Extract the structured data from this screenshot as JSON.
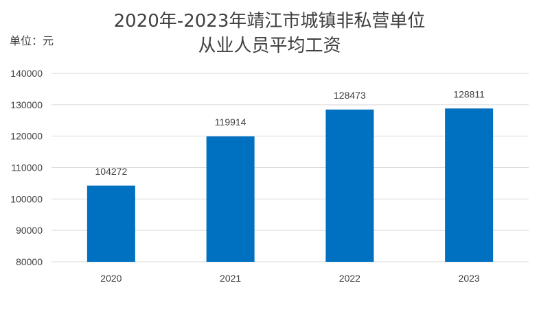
{
  "chart_data": {
    "type": "bar",
    "title_lines": [
      "2020年-2023年靖江市城镇非私营单位",
      "从业人员平均工资"
    ],
    "unit_label": "单位：元",
    "categories": [
      "2020",
      "2021",
      "2022",
      "2023"
    ],
    "values": [
      104272,
      119914,
      128473,
      128811
    ],
    "ylim": [
      80000,
      140000
    ],
    "yticks": [
      80000,
      90000,
      100000,
      110000,
      120000,
      130000,
      140000
    ],
    "bar_color": "#0070C0",
    "grid": true,
    "xlabel": "",
    "ylabel": ""
  }
}
